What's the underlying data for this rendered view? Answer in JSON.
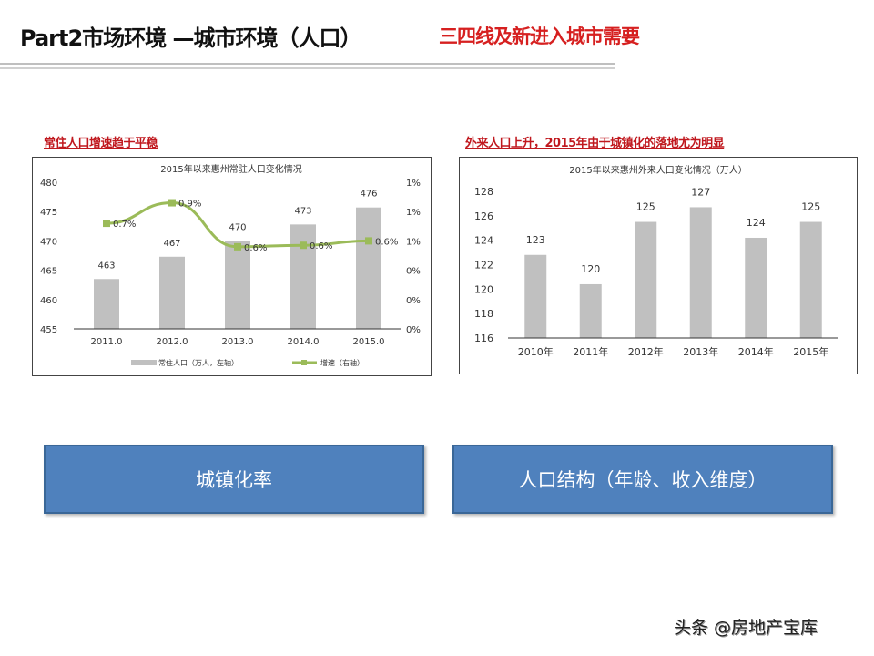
{
  "header": {
    "title": "Part2市场环境 —城市环境（人口）",
    "highlight": "三四线及新进入城市需要"
  },
  "left_panel": {
    "subtitle": "常住人口增速趋于平稳"
  },
  "right_panel": {
    "subtitle": "外来人口上升，2015年由于城镇化的落地尤为明显"
  },
  "buttons": [
    {
      "label": "城镇化率"
    },
    {
      "label": "人口结构（年龄、收入维度）"
    }
  ],
  "footer": {
    "watermark": "头条 @房地产宝库"
  },
  "colors": {
    "bar": "#c0c0c0",
    "line": "#9bbb59",
    "button": "#4f81bd",
    "accent_red": "#c0181e"
  },
  "chart_data": [
    {
      "type": "bar+line",
      "title": "2015年以来惠州常驻人口变化情况",
      "categories": [
        "2011.0",
        "2012.0",
        "2013.0",
        "2014.0",
        "2015.0"
      ],
      "ylim": [
        455,
        480
      ],
      "yticks": [
        "455",
        "460",
        "465",
        "470",
        "475",
        "480"
      ],
      "y2lim": [
        0,
        1.0
      ],
      "y2ticks": [
        "0%",
        "0%",
        "0%",
        "1%",
        "1%",
        "1%"
      ],
      "grid": false,
      "legend_position": "bottom",
      "series": [
        {
          "name": "常住人口（万人，左轴）",
          "type": "bar",
          "axis": "left",
          "values": [
            463.5,
            467.3,
            470.0,
            472.8,
            475.7
          ],
          "labels": [
            "463",
            "467",
            "470",
            "473",
            "476"
          ]
        },
        {
          "name": "增速（右轴）",
          "type": "line",
          "axis": "right",
          "values": [
            0.72,
            0.86,
            0.56,
            0.57,
            0.6
          ],
          "labels": [
            "0.7%",
            "0.9%",
            "0.6%",
            "0.6%",
            "0.6%"
          ]
        }
      ]
    },
    {
      "type": "bar",
      "title": "2015年以来惠州外来人口变化情况（万人）",
      "categories": [
        "2010年",
        "2011年",
        "2012年",
        "2013年",
        "2014年",
        "2015年"
      ],
      "ylim": [
        116,
        128
      ],
      "yticks": [
        "116",
        "118",
        "120",
        "122",
        "124",
        "126",
        "128"
      ],
      "grid": false,
      "series": [
        {
          "type": "bar",
          "values": [
            122.8,
            120.4,
            125.5,
            126.7,
            124.2,
            125.5
          ],
          "labels": [
            "123",
            "120",
            "125",
            "127",
            "124",
            "125"
          ]
        }
      ]
    }
  ]
}
